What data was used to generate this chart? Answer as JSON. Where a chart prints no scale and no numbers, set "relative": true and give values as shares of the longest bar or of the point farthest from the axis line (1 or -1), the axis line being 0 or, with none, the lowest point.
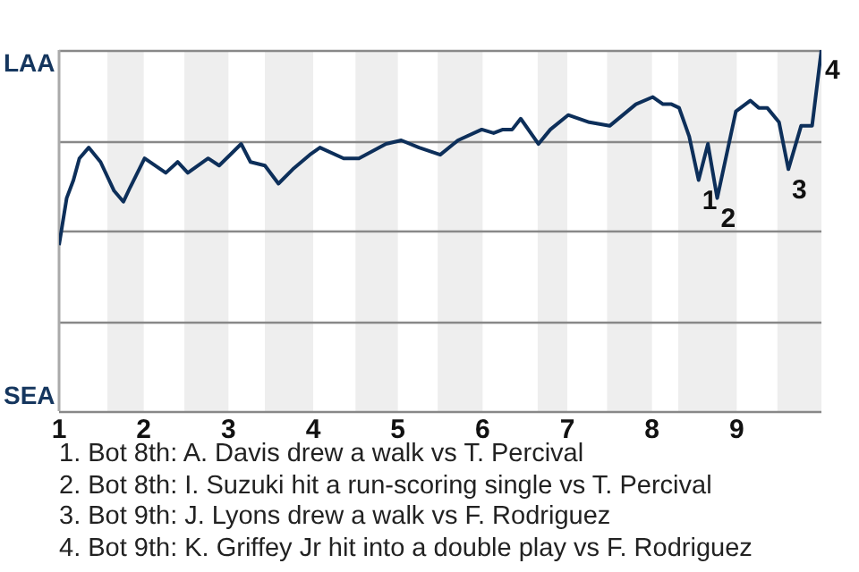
{
  "chart_data": {
    "type": "line",
    "relative": true,
    "x": [
      1,
      1.09,
      1.17,
      1.24,
      1.35,
      1.49,
      1.65,
      1.76,
      1.84,
      2.01,
      2.26,
      2.4,
      2.52,
      2.76,
      2.89,
      3.15,
      3.26,
      3.43,
      3.59,
      3.76,
      3.96,
      4.08,
      4.36,
      4.54,
      4.86,
      5.04,
      5.25,
      5.5,
      5.71,
      5.99,
      6.13,
      6.24,
      6.35,
      6.45,
      6.66,
      6.8,
      7.01,
      7.26,
      7.5,
      7.81,
      8.01,
      8.13,
      8.23,
      8.32,
      8.44,
      8.55,
      8.66,
      8.77,
      8.99,
      9.16,
      9.26,
      9.36,
      9.5,
      9.61,
      9.76,
      9.89,
      10
    ],
    "series": [
      {
        "color": "#0d2f5a",
        "values": [
          0.46,
          0.59,
          0.64,
          0.7,
          0.73,
          0.69,
          0.61,
          0.58,
          0.62,
          0.7,
          0.66,
          0.69,
          0.66,
          0.7,
          0.68,
          0.74,
          0.69,
          0.68,
          0.63,
          0.67,
          0.71,
          0.73,
          0.7,
          0.7,
          0.74,
          0.75,
          0.73,
          0.71,
          0.75,
          0.78,
          0.77,
          0.78,
          0.78,
          0.81,
          0.74,
          0.78,
          0.82,
          0.8,
          0.79,
          0.85,
          0.87,
          0.85,
          0.85,
          0.84,
          0.76,
          0.64,
          0.74,
          0.59,
          0.83,
          0.86,
          0.84,
          0.84,
          0.8,
          0.67,
          0.79,
          0.79,
          1
        ]
      }
    ],
    "xlim": [
      1,
      10
    ],
    "xticks": [
      1,
      2,
      3,
      4,
      5,
      6,
      7,
      8,
      9
    ],
    "grid": "y",
    "legend": false,
    "marker": "none",
    "line_style": "solid",
    "bands": [
      {
        "axis": "x",
        "from": 1.57,
        "to": 2,
        "color": "#eeeeee"
      },
      {
        "axis": "x",
        "from": 2.48,
        "to": 3,
        "color": "#eeeeee"
      },
      {
        "axis": "x",
        "from": 3.43,
        "to": 4,
        "color": "#eeeeee"
      },
      {
        "axis": "x",
        "from": 4.5,
        "to": 5,
        "color": "#eeeeee"
      },
      {
        "axis": "x",
        "from": 5.47,
        "to": 6,
        "color": "#eeeeee"
      },
      {
        "axis": "x",
        "from": 6.65,
        "to": 7,
        "color": "#eeeeee"
      },
      {
        "axis": "x",
        "from": 7.47,
        "to": 8,
        "color": "#eeeeee"
      },
      {
        "axis": "x",
        "from": 8.31,
        "to": 9,
        "color": "#eeeeee"
      },
      {
        "axis": "x",
        "from": 9.48,
        "to": 10,
        "color": "#eeeeee"
      }
    ],
    "annotations": [
      "LAA",
      "SEA",
      {
        "text": "1",
        "x": 8.55,
        "y": 0.64
      },
      {
        "text": "2",
        "x": 8.77,
        "y": 0.59
      },
      {
        "text": "3",
        "x": 9.61,
        "y": 0.67
      },
      {
        "text": "4",
        "x": 10,
        "y": 1
      },
      "1. Bot 8th: A. Davis drew a walk vs T. Percival",
      "2. Bot 8th: I. Suzuki hit a run-scoring single vs T. Percival",
      "3. Bot 9th: J. Lyons drew a walk vs F. Rodriguez",
      "4. Bot 9th: K. Griffey Jr hit into a double play vs F. Rodriguez"
    ]
  }
}
